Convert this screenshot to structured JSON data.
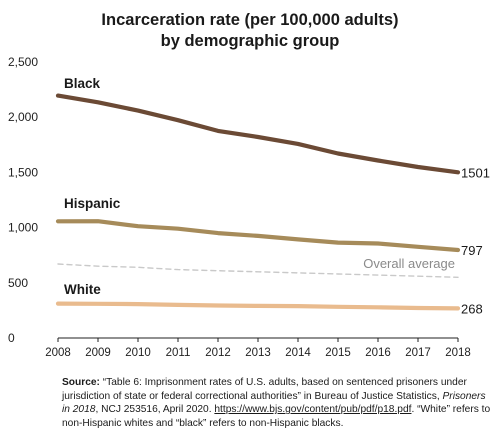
{
  "chart_data": {
    "type": "line",
    "title_line1": "Incarceration rate (per 100,000 adults)",
    "title_line2": "by demographic group",
    "x": [
      2008,
      2009,
      2010,
      2011,
      2012,
      2013,
      2014,
      2015,
      2016,
      2017,
      2018
    ],
    "x_tick_labels": [
      "2008",
      "2009",
      "2010",
      "2011",
      "2012",
      "2013",
      "2014",
      "2015",
      "2016",
      "2017",
      "2018"
    ],
    "y_ticks": [
      0,
      500,
      1000,
      1500,
      2000,
      2500
    ],
    "y_tick_labels": [
      "0",
      "500",
      "1,000",
      "1,500",
      "2,000",
      "2,500"
    ],
    "ylim": [
      0,
      2500
    ],
    "xlim": [
      2008,
      2018
    ],
    "grid": false,
    "legend": "direct labels",
    "series": [
      {
        "name": "Black",
        "color": "#6b4a35",
        "style": "solid",
        "values": [
          2196,
          2135,
          2060,
          1973,
          1876,
          1821,
          1758,
          1671,
          1608,
          1549,
          1501
        ],
        "end_label": "1501"
      },
      {
        "name": "Hispanic",
        "color": "#a68b5a",
        "style": "solid",
        "values": [
          1057,
          1058,
          1013,
          990,
          950,
          925,
          893,
          864,
          856,
          826,
          797
        ],
        "end_label": "797"
      },
      {
        "name": "Overall average",
        "color": "#c9c9c9",
        "style": "dashed",
        "values": [
          670,
          650,
          640,
          620,
          610,
          600,
          590,
          580,
          570,
          560,
          550
        ],
        "end_label": ""
      },
      {
        "name": "White",
        "color": "#e9bb8e",
        "style": "solid",
        "values": [
          312,
          310,
          307,
          300,
          294,
          291,
          289,
          283,
          278,
          272,
          268
        ],
        "end_label": "268"
      }
    ]
  },
  "source": {
    "label": "Source:",
    "part1": " “Table 6: Imprisonment rates of U.S. adults, based on sentenced prisoners under jurisdiction of state or federal correctional authorities” in Bureau of Justice Statistics, ",
    "publication": "Prisoners in 2018",
    "part2": ", NCJ 253516, April 2020. ",
    "link": "https://www.bjs.gov/content/pub/pdf/p18.pdf",
    "part3": ". “White” refers to non-Hispanic whites and “black” refers to non-Hispanic blacks."
  }
}
